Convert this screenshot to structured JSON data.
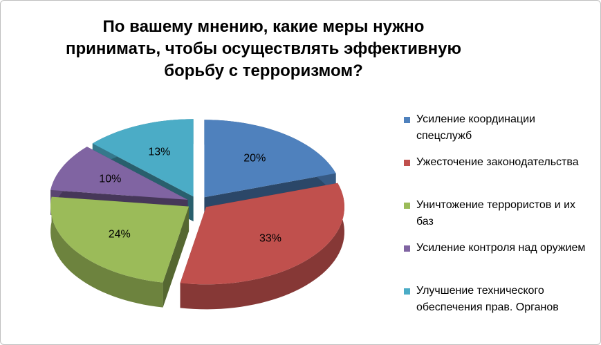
{
  "chart_data": {
    "type": "pie",
    "title": "По вашему мнению, какие меры нужно принимать, чтобы осуществлять эффективную борьбу с терроризмом?",
    "categories": [
      "Усиление координации спецслужб",
      "Ужесточение законодательства",
      "Уничтожение террористов и их баз",
      "Усиление контроля над оружием",
      "Улучшение технического обеспечения прав. Органов"
    ],
    "values": [
      20,
      33,
      24,
      10,
      13
    ],
    "value_labels": [
      "20%",
      "33%",
      "24%",
      "10%",
      "13%"
    ],
    "colors": [
      "#4f81bd",
      "#c0504d",
      "#9bbb59",
      "#8064a2",
      "#4bacc6"
    ],
    "legend": "right"
  }
}
